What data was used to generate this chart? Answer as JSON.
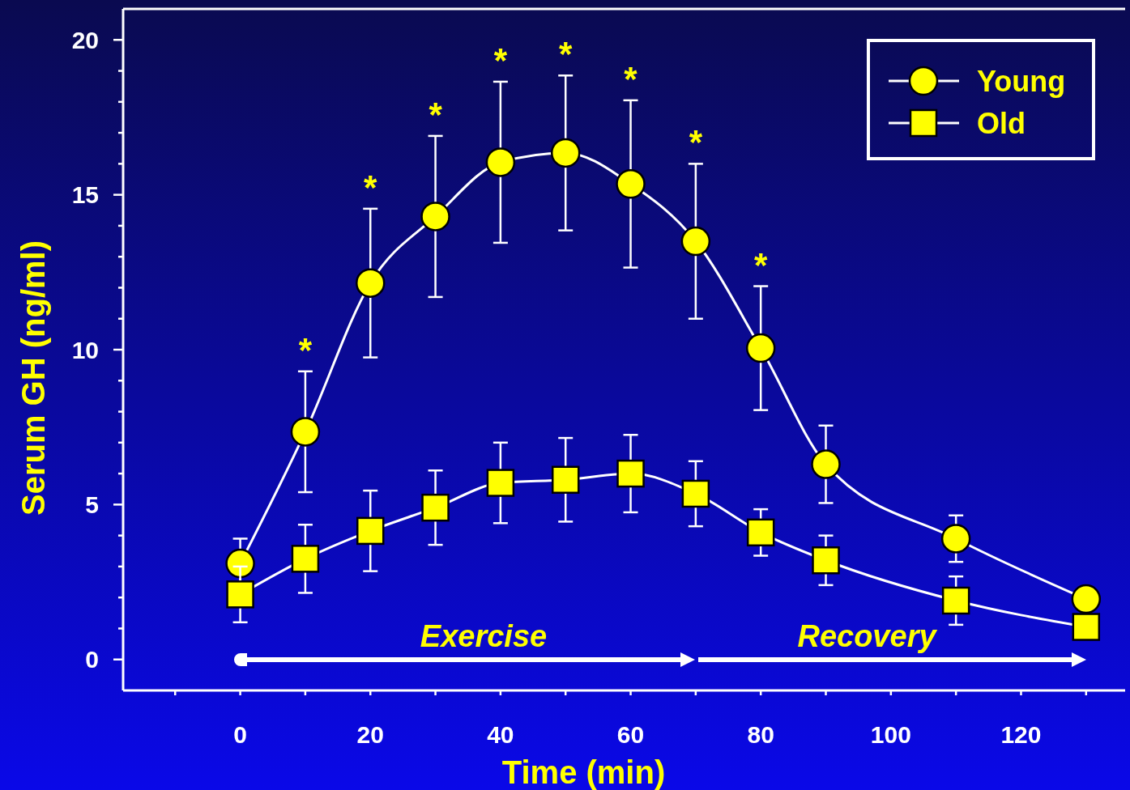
{
  "chart_data": {
    "type": "line",
    "xlabel": "Time (min)",
    "ylabel": "Serum GH (ng/ml)",
    "xlim": [
      -18,
      136
    ],
    "ylim": [
      -1,
      21
    ],
    "xticks": [
      {
        "value": -10,
        "label": null
      },
      0,
      {
        "value": 10,
        "label": null
      },
      20,
      {
        "value": 30,
        "label": null
      },
      40,
      {
        "value": 50,
        "label": null
      },
      60,
      {
        "value": 70,
        "label": null
      },
      80,
      {
        "value": 90,
        "label": null
      },
      100,
      {
        "value": 110,
        "label": null
      },
      120,
      {
        "value": 130,
        "label": null
      }
    ],
    "yticks": [
      0,
      {
        "value": 1,
        "label": null
      },
      {
        "value": 2,
        "label": null
      },
      {
        "value": 3,
        "label": null
      },
      {
        "value": 4,
        "label": null
      },
      5,
      {
        "value": 6,
        "label": null
      },
      {
        "value": 7,
        "label": null
      },
      {
        "value": 8,
        "label": null
      },
      {
        "value": 9,
        "label": null
      },
      10,
      {
        "value": 11,
        "label": null
      },
      {
        "value": 12,
        "label": null
      },
      {
        "value": 13,
        "label": null
      },
      {
        "value": 14,
        "label": null
      },
      15,
      {
        "value": 16,
        "label": null
      },
      {
        "value": 17,
        "label": null
      },
      {
        "value": 18,
        "label": null
      },
      {
        "value": 19,
        "label": null
      },
      20
    ],
    "x": [
      0,
      10,
      20,
      30,
      40,
      50,
      60,
      70,
      80,
      90,
      110,
      130
    ],
    "series": [
      {
        "name": "Young",
        "color": "#ffff00",
        "marker": "circle",
        "values": [
          3.1,
          7.35,
          12.15,
          14.3,
          16.05,
          16.35,
          15.35,
          13.5,
          10.05,
          6.3,
          3.9,
          1.95
        ],
        "errors": [
          0.8,
          1.95,
          2.4,
          2.6,
          2.6,
          2.5,
          2.7,
          2.5,
          2.0,
          1.25,
          0.75,
          null
        ]
      },
      {
        "name": "Old",
        "color": "#ffff00",
        "marker": "square",
        "values": [
          2.1,
          3.25,
          4.15,
          4.9,
          5.7,
          5.8,
          6.0,
          5.35,
          4.1,
          3.2,
          1.9,
          1.05
        ],
        "errors": [
          0.9,
          1.1,
          1.3,
          1.2,
          1.3,
          1.35,
          1.25,
          1.05,
          0.75,
          0.8,
          0.78,
          null
        ]
      }
    ],
    "line_style": "solid",
    "grid": false,
    "legend": "top right",
    "annotations": [
      "*",
      "*",
      "*",
      "*",
      "*",
      "*",
      "*",
      "*",
      "Exercise",
      "Recovery"
    ]
  }
}
